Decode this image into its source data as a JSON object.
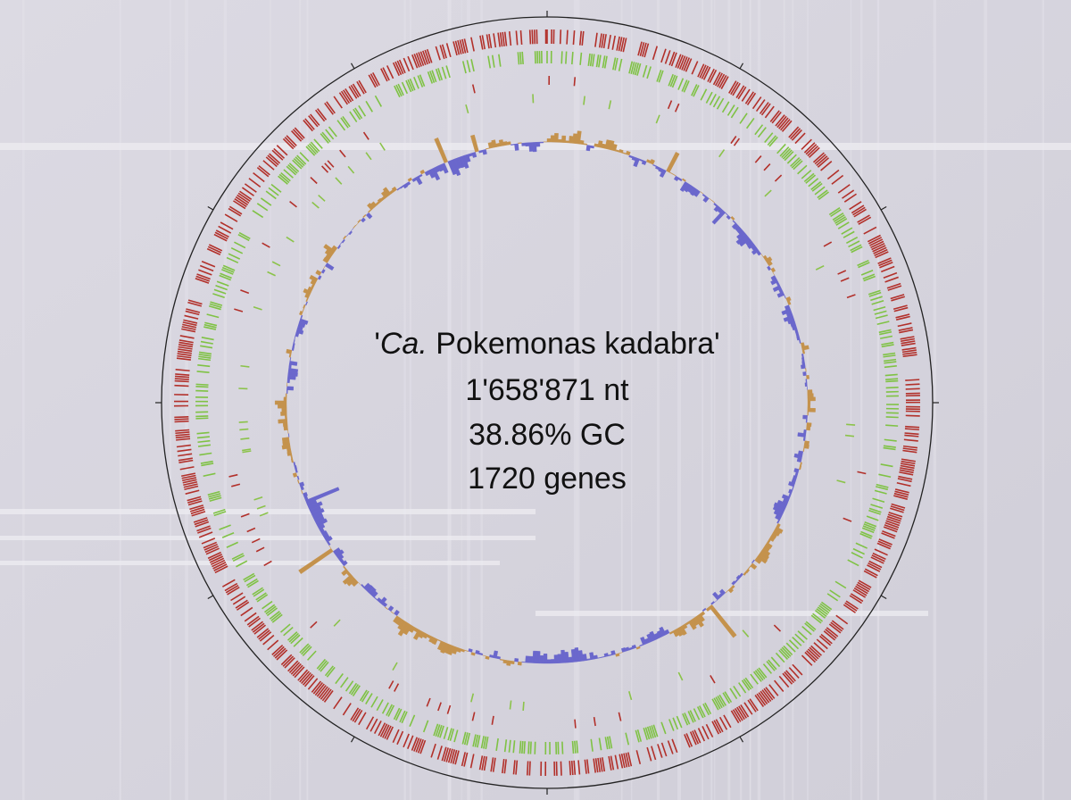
{
  "title_parts": [
    "'",
    "Ca.",
    " Pokemonas kadabra'"
  ],
  "length": "1'658'871 nt",
  "gc": "38.86% GC",
  "genes": "1720 genes"
}
